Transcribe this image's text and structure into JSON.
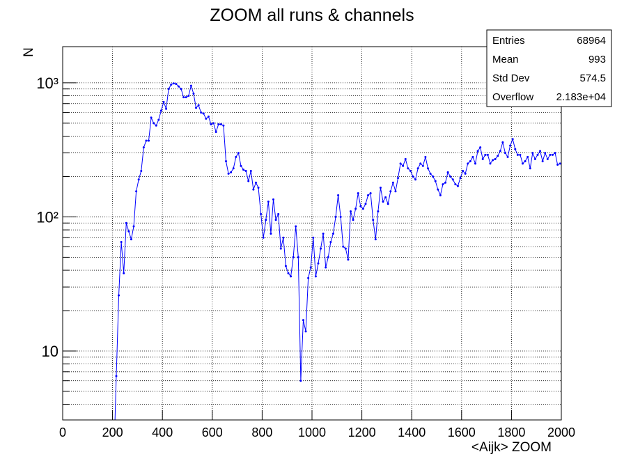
{
  "chart_data": {
    "type": "line",
    "title": "ZOOM all runs & channels",
    "x_label": "<Aijk> ZOOM",
    "y_label": "N",
    "x": [
      205,
      215,
      225,
      235,
      245,
      255,
      265,
      275,
      285,
      295,
      305,
      315,
      325,
      335,
      345,
      355,
      365,
      375,
      385,
      395,
      405,
      415,
      425,
      435,
      445,
      455,
      465,
      475,
      485,
      495,
      505,
      515,
      525,
      535,
      545,
      555,
      565,
      575,
      585,
      595,
      605,
      615,
      625,
      635,
      645,
      655,
      665,
      675,
      685,
      695,
      705,
      715,
      725,
      735,
      745,
      755,
      765,
      775,
      785,
      795,
      805,
      815,
      825,
      835,
      845,
      855,
      865,
      875,
      885,
      895,
      905,
      915,
      925,
      935,
      945,
      955,
      965,
      975,
      985,
      995,
      1005,
      1015,
      1025,
      1035,
      1045,
      1055,
      1065,
      1075,
      1085,
      1095,
      1105,
      1115,
      1125,
      1135,
      1145,
      1155,
      1165,
      1175,
      1185,
      1195,
      1205,
      1215,
      1225,
      1235,
      1245,
      1255,
      1265,
      1275,
      1285,
      1295,
      1305,
      1315,
      1325,
      1335,
      1345,
      1355,
      1365,
      1375,
      1385,
      1395,
      1405,
      1415,
      1425,
      1435,
      1445,
      1455,
      1465,
      1475,
      1485,
      1495,
      1505,
      1515,
      1525,
      1535,
      1545,
      1555,
      1565,
      1575,
      1585,
      1595,
      1605,
      1615,
      1625,
      1635,
      1645,
      1655,
      1665,
      1675,
      1685,
      1695,
      1705,
      1715,
      1725,
      1735,
      1745,
      1755,
      1765,
      1775,
      1785,
      1795,
      1805,
      1815,
      1825,
      1835,
      1845,
      1855,
      1865,
      1875,
      1885,
      1895,
      1905,
      1915,
      1925,
      1935,
      1945,
      1955,
      1965,
      1975,
      1985,
      1995
    ],
    "values": [
      1.5,
      6.5,
      26,
      65,
      38,
      90,
      78,
      68,
      85,
      155,
      190,
      220,
      330,
      370,
      370,
      550,
      500,
      480,
      530,
      620,
      720,
      640,
      900,
      970,
      990,
      980,
      940,
      900,
      780,
      780,
      800,
      950,
      830,
      650,
      680,
      600,
      590,
      540,
      560,
      490,
      500,
      430,
      490,
      490,
      480,
      260,
      210,
      215,
      230,
      280,
      300,
      240,
      225,
      220,
      185,
      220,
      160,
      180,
      165,
      105,
      70,
      95,
      130,
      75,
      135,
      95,
      105,
      58,
      70,
      43,
      38,
      36,
      50,
      85,
      50,
      6,
      17,
      14,
      35,
      42,
      70,
      36,
      45,
      58,
      75,
      42,
      50,
      65,
      75,
      100,
      145,
      100,
      60,
      58,
      48,
      110,
      95,
      115,
      150,
      120,
      115,
      125,
      145,
      150,
      95,
      68,
      110,
      165,
      130,
      140,
      125,
      155,
      180,
      155,
      195,
      250,
      240,
      270,
      230,
      220,
      200,
      190,
      230,
      250,
      240,
      280,
      230,
      210,
      200,
      185,
      160,
      145,
      175,
      180,
      215,
      200,
      190,
      175,
      170,
      195,
      220,
      210,
      250,
      260,
      280,
      250,
      310,
      330,
      270,
      290,
      290,
      250,
      265,
      270,
      285,
      310,
      360,
      300,
      280,
      340,
      380,
      320,
      290,
      290,
      250,
      260,
      280,
      230,
      300,
      270,
      290,
      310,
      260,
      300,
      270,
      290,
      290,
      300,
      245,
      250
    ],
    "color": "#0000ff",
    "xlim": [
      0,
      2000
    ],
    "xticks": [
      0,
      200,
      400,
      600,
      800,
      1000,
      1200,
      1400,
      1600,
      1800,
      2000
    ],
    "ylim": [
      3.06,
      1860
    ],
    "log_y": true,
    "grid": true,
    "yticks": [
      10,
      {
        "value": 100,
        "label": "10²"
      },
      {
        "value": 1000,
        "label": "10³"
      }
    ],
    "yminorticks": [
      4,
      5,
      6,
      7,
      8,
      9,
      20,
      30,
      40,
      50,
      60,
      70,
      80,
      90,
      200,
      300,
      400,
      500,
      600,
      700,
      800,
      900
    ],
    "stats": [
      {
        "label": "Entries",
        "value": "68964"
      },
      {
        "label": "Mean",
        "value": "993"
      },
      {
        "label": "Std Dev",
        "value": "574.5"
      },
      {
        "label": "Overflow",
        "value": "2.183e+04"
      }
    ]
  }
}
